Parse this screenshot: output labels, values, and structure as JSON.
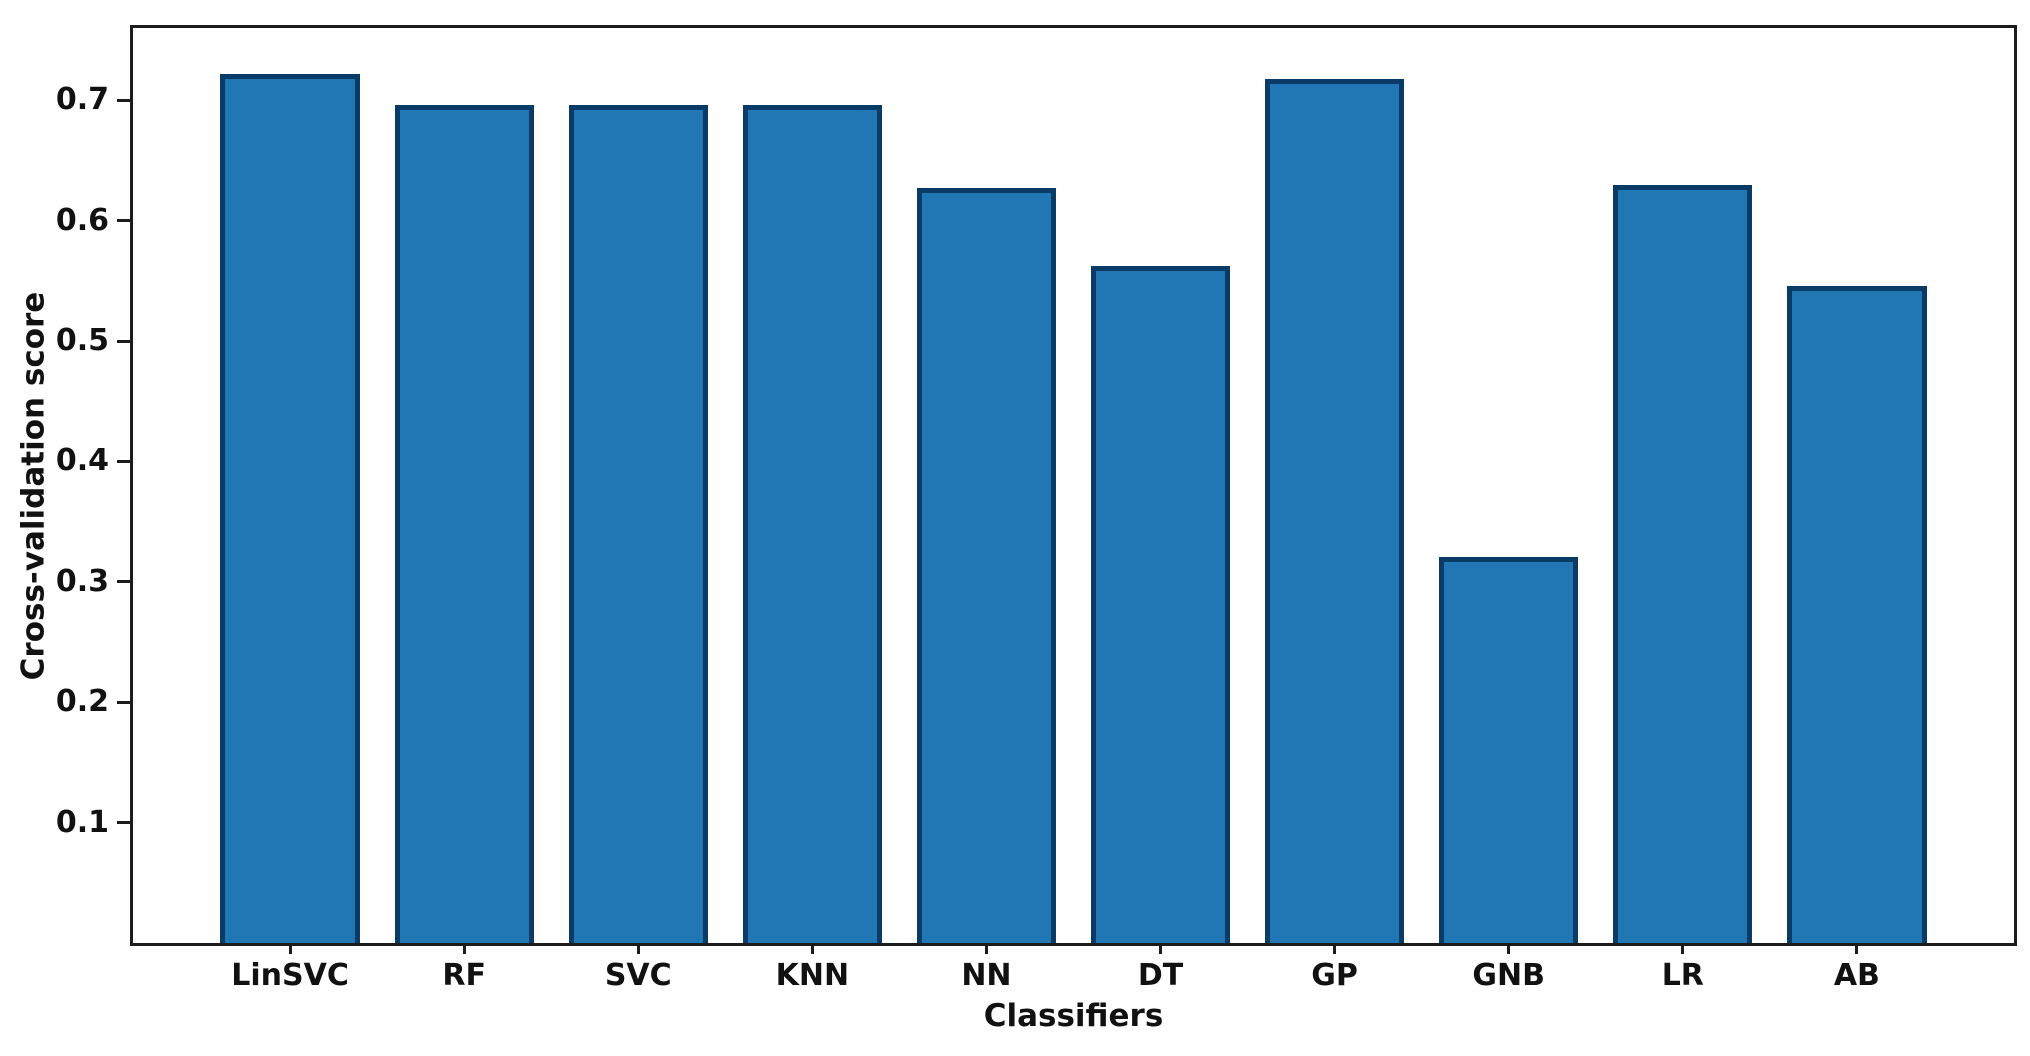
{
  "chart_data": {
    "type": "bar",
    "title": "",
    "xlabel": "Classifiers",
    "ylabel": "Cross-validation score",
    "categories": [
      "LinSVC",
      "RF",
      "SVC",
      "KNN",
      "NN",
      "DT",
      "GP",
      "GNB",
      "LR",
      "AB"
    ],
    "values": [
      0.722,
      0.696,
      0.696,
      0.696,
      0.627,
      0.562,
      0.718,
      0.321,
      0.63,
      0.546
    ],
    "ylim": [
      0,
      0.76
    ],
    "yticks": [
      0.1,
      0.2,
      0.3,
      0.4,
      0.5,
      0.6,
      0.7
    ],
    "ytick_decimals": 1,
    "grid": false,
    "legend": "none",
    "bar_fill_color": "#2077b4",
    "bar_edge_color": "#0a3b66",
    "frame_color": "#1c1c1c",
    "background_color": "#ffffff",
    "text_color": "#111111"
  }
}
